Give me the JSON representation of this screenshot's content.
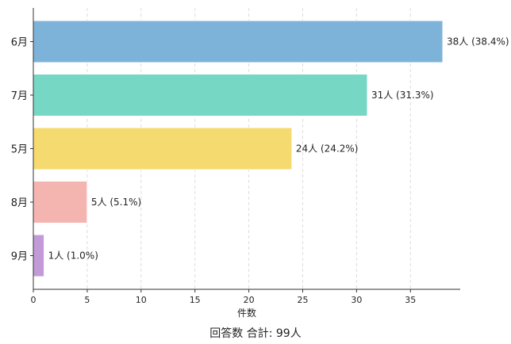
{
  "chart_data": {
    "type": "bar",
    "orientation": "horizontal",
    "categories": [
      "6月",
      "7月",
      "5月",
      "8月",
      "9月"
    ],
    "values": [
      38,
      31,
      24,
      5,
      1
    ],
    "data_labels": [
      "38人 (38.4%)",
      "31人 (31.3%)",
      "24人 (24.2%)",
      "5人 (5.1%)",
      "1人 (1.0%)"
    ],
    "colors": [
      "#7eb3d9",
      "#76d8c4",
      "#f5da6f",
      "#f4b5b1",
      "#c39ad8"
    ],
    "xlabel": "件数",
    "footer": "回答数 合計: 99人",
    "xlim": [
      0,
      40
    ],
    "xticks": [
      0,
      5,
      10,
      15,
      20,
      25,
      30,
      35
    ],
    "grid": "x-dashed",
    "legend": "none"
  }
}
